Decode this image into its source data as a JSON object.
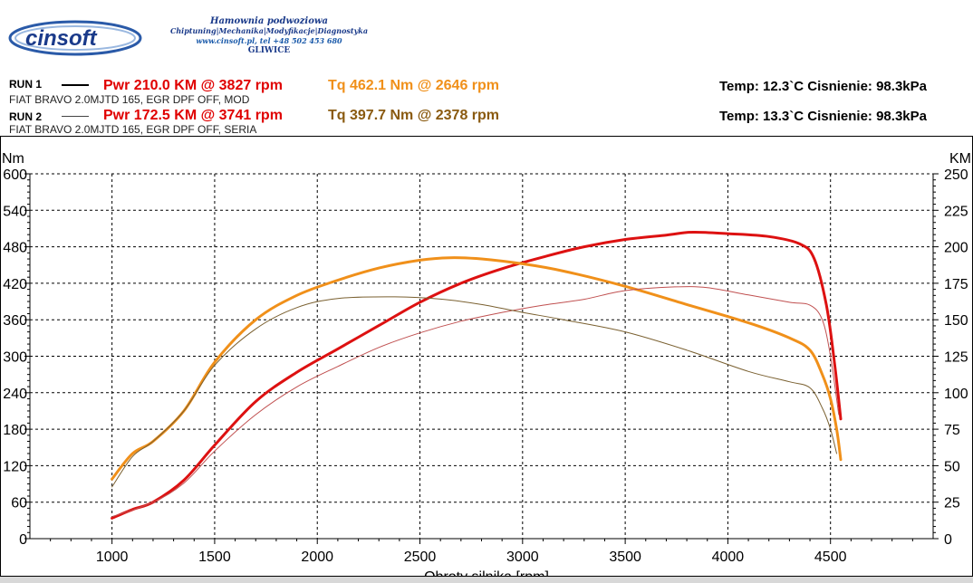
{
  "header": {
    "logo_text": "cinsoft",
    "line1": "Hamownia podwoziowa",
    "line2": "Chiptuning|Mechanika|Modyfikacje|Diagnostyka",
    "line3": "www.cinsoft.pl, tel +48 502 453 680",
    "line4": "GLIWICE"
  },
  "runs": [
    {
      "label": "RUN 1",
      "pwr": "Pwr  210.0 KM @ 3827 rpm",
      "tq": "Tq 462.1 Nm @ 2646 rpm",
      "desc": "FIAT BRAVO 2.0MJTD 165, EGR DPF OFF, MOD",
      "env": "Temp: 12.3`C   Cisnienie: 98.3kPa"
    },
    {
      "label": "RUN 2",
      "pwr": "Pwr  172.5 KM @ 3741 rpm",
      "tq": "Tq 397.7 Nm @ 2378 rpm",
      "desc": "FIAT BRAVO 2.0MJTD 165, EGR DPF OFF, SERIA",
      "env": "Temp: 13.3`C   Cisnienie: 98.3kPa"
    }
  ],
  "colors": {
    "pwr1": "#dd1111",
    "tq1": "#f0901a",
    "pwr2": "#c05050",
    "tq2": "#7a6030",
    "tq_text1": "#f0901a",
    "tq_text2": "#8a5a10",
    "grid": "#000000"
  },
  "chart_data": {
    "type": "line",
    "xlabel": "Obroty silnika [rpm]",
    "ylabel_left": "Nm",
    "ylabel_right": "KM",
    "x_range": [
      600,
      5000
    ],
    "y_left_range": [
      0,
      600
    ],
    "y_right_range": [
      0,
      250
    ],
    "x_ticks": [
      1000,
      1500,
      2000,
      2500,
      3000,
      3500,
      4000,
      4500
    ],
    "y_left_ticks": [
      0,
      60,
      120,
      180,
      240,
      300,
      360,
      420,
      480,
      540,
      600
    ],
    "y_right_ticks": [
      0,
      25,
      50,
      75,
      100,
      125,
      150,
      175,
      200,
      225,
      250
    ],
    "grid": true,
    "series": [
      {
        "name": "RUN 1 Pwr",
        "axis": "right",
        "x": [
          1000,
          1100,
          1200,
          1350,
          1500,
          1700,
          1900,
          2100,
          2300,
          2500,
          2700,
          2900,
          3100,
          3300,
          3500,
          3700,
          3827,
          4000,
          4200,
          4350,
          4420,
          4480,
          4520,
          4550
        ],
        "y": [
          14,
          20,
          25,
          40,
          64,
          94,
          114,
          130,
          146,
          162,
          175,
          185,
          193,
          200,
          205,
          208,
          210,
          209,
          207,
          202,
          192,
          160,
          120,
          82
        ]
      },
      {
        "name": "RUN 1 Tq",
        "axis": "left",
        "x": [
          1000,
          1100,
          1200,
          1350,
          1500,
          1700,
          1900,
          2100,
          2300,
          2500,
          2646,
          2800,
          3000,
          3200,
          3500,
          3800,
          4100,
          4300,
          4400,
          4460,
          4500,
          4530,
          4550
        ],
        "y": [
          98,
          140,
          160,
          210,
          290,
          360,
          400,
          425,
          445,
          458,
          462,
          460,
          452,
          440,
          415,
          385,
          355,
          330,
          310,
          270,
          230,
          180,
          130
        ]
      },
      {
        "name": "RUN 2 Pwr",
        "axis": "right",
        "x": [
          1000,
          1200,
          1350,
          1500,
          1700,
          1900,
          2100,
          2300,
          2500,
          2700,
          2900,
          3100,
          3300,
          3500,
          3741,
          3900,
          4100,
          4300,
          4400,
          4460,
          4500,
          4540
        ],
        "y": [
          15,
          25,
          38,
          60,
          85,
          104,
          118,
          131,
          141,
          149,
          155,
          160,
          164,
          170,
          172.5,
          172,
          167,
          162,
          160,
          150,
          125,
          85
        ]
      },
      {
        "name": "RUN 2 Tq",
        "axis": "left",
        "x": [
          1000,
          1100,
          1200,
          1350,
          1500,
          1700,
          1900,
          2100,
          2378,
          2600,
          2800,
          3000,
          3200,
          3500,
          3800,
          4100,
          4300,
          4400,
          4460,
          4500,
          4530
        ],
        "y": [
          85,
          135,
          160,
          210,
          285,
          345,
          380,
          395,
          397.7,
          394,
          385,
          372,
          360,
          340,
          310,
          275,
          258,
          248,
          215,
          180,
          140
        ]
      }
    ]
  }
}
